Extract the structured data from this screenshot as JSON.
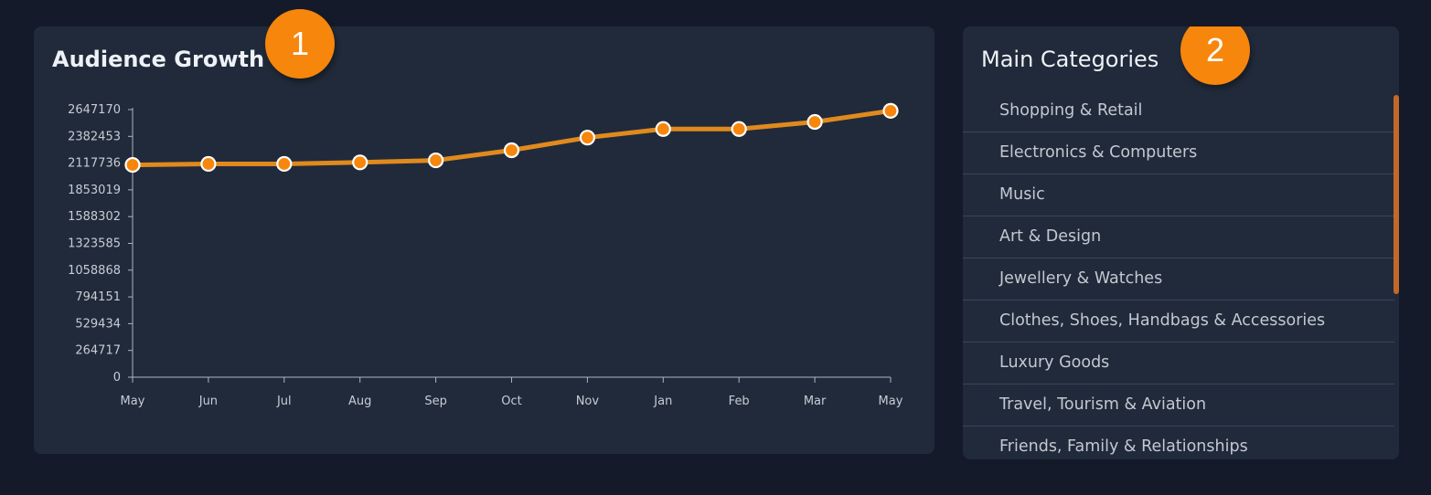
{
  "audience_growth": {
    "title": "Audience Growth",
    "badge": "1"
  },
  "main_categories": {
    "title": "Main Categories",
    "badge": "2",
    "items": [
      "Shopping & Retail",
      "Electronics & Computers",
      "Music",
      "Art & Design",
      "Jewellery & Watches",
      "Clothes, Shoes, Handbags & Accessories",
      "Luxury Goods",
      "Travel, Tourism & Aviation",
      "Friends, Family & Relationships"
    ]
  },
  "colors": {
    "background": "#141a29",
    "panel": "#212a3a",
    "accent": "#f7860c",
    "line": "#e08a1e",
    "scrollbar": "#c0692a"
  },
  "chart_data": {
    "type": "line",
    "categories": [
      "May",
      "Jun",
      "Jul",
      "Aug",
      "Sep",
      "Oct",
      "Nov",
      "Jan",
      "Feb",
      "Mar",
      "May"
    ],
    "series": [
      {
        "values": [
          2100000,
          2110000,
          2110000,
          2125000,
          2145000,
          2245000,
          2370000,
          2455000,
          2455000,
          2525000,
          2635000
        ]
      }
    ],
    "yticks": [
      0,
      264717,
      529434,
      794151,
      1058868,
      1323585,
      1588302,
      1853019,
      2117736,
      2382453,
      2647170
    ],
    "ylim": [
      0,
      2647170
    ],
    "xlabel": "",
    "ylabel": "",
    "grid": false,
    "legend": "none"
  }
}
